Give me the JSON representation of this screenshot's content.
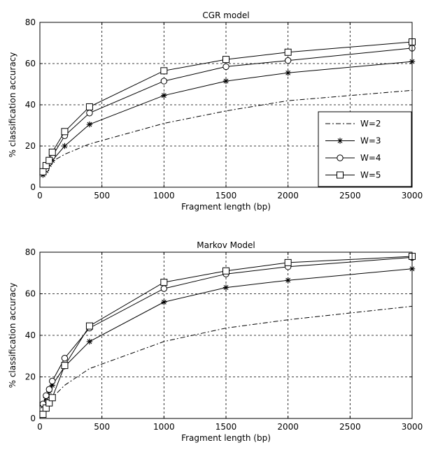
{
  "chart_data": [
    {
      "type": "line",
      "title": "CGR model",
      "xlabel": "Fragment length (bp)",
      "ylabel": "% classification accuracy",
      "xlim": [
        0,
        3000
      ],
      "ylim": [
        0,
        80
      ],
      "xticks": [
        0,
        500,
        1000,
        1500,
        2000,
        2500,
        3000
      ],
      "yticks": [
        0,
        20,
        40,
        60,
        80
      ],
      "grid": true,
      "grid_style": "dashed",
      "legend_position": "right",
      "series": [
        {
          "name": "W=2",
          "style": "dashdot",
          "marker": "none",
          "x": [
            25,
            50,
            75,
            100,
            200,
            400,
            1000,
            1500,
            2000,
            3000
          ],
          "y": [
            6,
            8.5,
            10.5,
            12.5,
            16,
            21,
            31,
            37,
            42,
            47
          ]
        },
        {
          "name": "W=3",
          "style": "solid",
          "marker": "star",
          "x": [
            25,
            50,
            75,
            100,
            200,
            400,
            1000,
            1500,
            2000,
            3000
          ],
          "y": [
            6,
            8,
            11,
            13,
            20,
            30.5,
            44.5,
            51.5,
            55.5,
            61
          ]
        },
        {
          "name": "W=4",
          "style": "solid",
          "marker": "circle",
          "x": [
            25,
            50,
            75,
            100,
            200,
            400,
            1000,
            1500,
            2000,
            3000
          ],
          "y": [
            7,
            9,
            12,
            15,
            25,
            36,
            51.5,
            58.5,
            61.5,
            67.5
          ]
        },
        {
          "name": "W=5",
          "style": "solid",
          "marker": "square",
          "x": [
            25,
            50,
            75,
            100,
            200,
            400,
            1000,
            1500,
            2000,
            3000
          ],
          "y": [
            7.5,
            10.5,
            13,
            17,
            27,
            39,
            56.5,
            62,
            65.5,
            70.5
          ]
        }
      ]
    },
    {
      "type": "line",
      "title": "Markov Model",
      "xlabel": "Fragment length (bp)",
      "ylabel": "% classification accuracy",
      "xlim": [
        0,
        3000
      ],
      "ylim": [
        0,
        80
      ],
      "xticks": [
        0,
        500,
        1000,
        1500,
        2000,
        2500,
        3000
      ],
      "yticks": [
        0,
        20,
        40,
        60,
        80
      ],
      "grid": true,
      "grid_style": "dashed",
      "series": [
        {
          "name": "W=2",
          "style": "dashdot",
          "marker": "none",
          "x": [
            25,
            50,
            75,
            100,
            200,
            400,
            1000,
            1500,
            2000,
            3000
          ],
          "y": [
            5,
            7,
            8.5,
            10,
            16,
            24,
            37,
            43.5,
            47.5,
            54
          ]
        },
        {
          "name": "W=3",
          "style": "solid",
          "marker": "star",
          "x": [
            25,
            50,
            75,
            100,
            200,
            400,
            1000,
            1500,
            2000,
            3000
          ],
          "y": [
            6,
            10,
            13,
            16,
            25,
            37,
            56,
            63,
            66.5,
            72
          ]
        },
        {
          "name": "W=4",
          "style": "solid",
          "marker": "circle",
          "x": [
            25,
            50,
            75,
            100,
            200,
            400,
            1000,
            1500,
            2000,
            3000
          ],
          "y": [
            7,
            11,
            14,
            18,
            29,
            43.5,
            62.5,
            69.5,
            73,
            77.5
          ]
        },
        {
          "name": "W=5",
          "style": "solid",
          "marker": "square",
          "x": [
            25,
            50,
            75,
            100,
            200,
            400,
            1000,
            1500,
            2000,
            3000
          ],
          "y": [
            2,
            5,
            7.5,
            10,
            25.5,
            44.5,
            65.5,
            71,
            75,
            78
          ]
        }
      ]
    }
  ]
}
